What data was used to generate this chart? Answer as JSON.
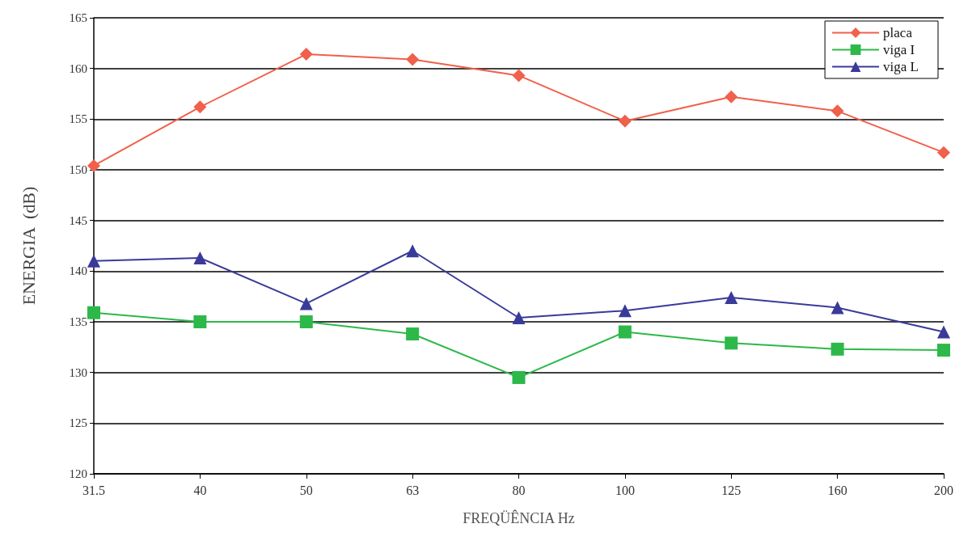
{
  "chart_data": {
    "type": "line",
    "xlabel": "FREQÜÊNCIA Hz",
    "ylabel": "ENERGIA  (dB)",
    "categories": [
      "31.5",
      "40",
      "50",
      "63",
      "80",
      "100",
      "125",
      "160",
      "200"
    ],
    "ylim": [
      120,
      165
    ],
    "yticks": [
      120,
      125,
      130,
      135,
      140,
      145,
      150,
      155,
      160,
      165
    ],
    "grid": "y",
    "legend": "top right",
    "series": [
      {
        "name": "placa",
        "color": "#f0604a",
        "marker": "diamond",
        "values": [
          150.4,
          156.2,
          161.4,
          160.9,
          159.3,
          154.8,
          157.2,
          155.8,
          151.7
        ]
      },
      {
        "name": "viga I",
        "color": "#2db84a",
        "marker": "square",
        "values": [
          135.9,
          135.0,
          135.0,
          133.8,
          129.5,
          134.0,
          132.9,
          132.3,
          132.2
        ]
      },
      {
        "name": "viga L",
        "color": "#3a3a9a",
        "marker": "triangle",
        "values": [
          141.0,
          141.3,
          136.8,
          142.0,
          135.4,
          136.1,
          137.4,
          136.4,
          134.0
        ]
      }
    ]
  }
}
